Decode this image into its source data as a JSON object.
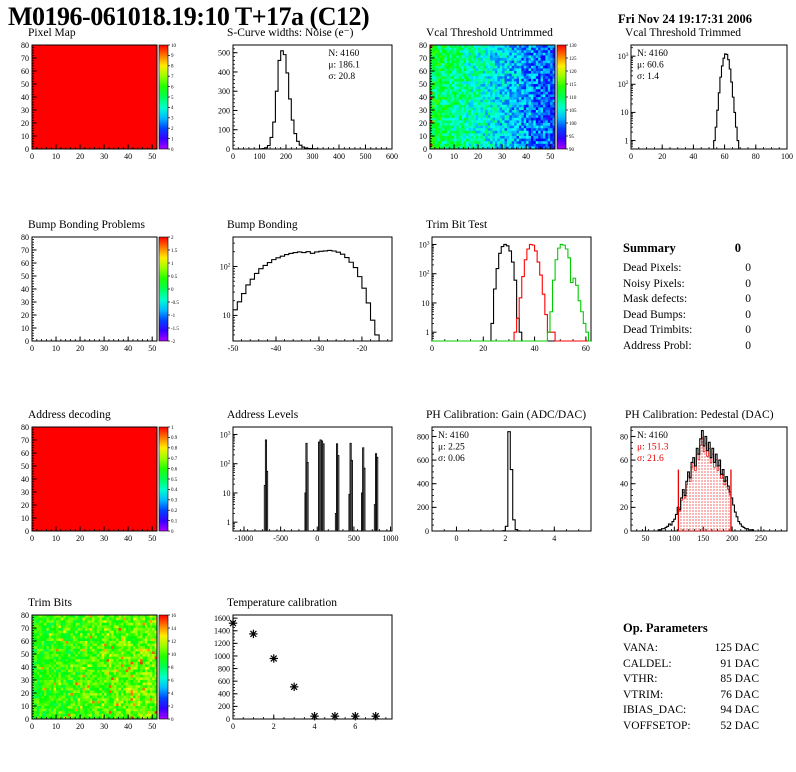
{
  "header": {
    "title": "M0196-061018.19:10 T+17a (C12)",
    "date": "Fri Nov 24 19:17:31 2006"
  },
  "palette": {
    "map_red": "#ff0000",
    "hist_black": "#000000",
    "hist_red": "#ff0000",
    "hist_green": "#00cc00",
    "pedestal_red": "#e60000"
  },
  "summary": {
    "heading": "Summary",
    "heading_value": "0",
    "rows": [
      {
        "label": "Dead Pixels:",
        "value": "0"
      },
      {
        "label": "Noisy Pixels:",
        "value": "0"
      },
      {
        "label": "Mask defects:",
        "value": "0"
      },
      {
        "label": "Dead Bumps:",
        "value": "0"
      },
      {
        "label": "Dead Trimbits:",
        "value": "0"
      },
      {
        "label": "Address Probl:",
        "value": "0"
      }
    ]
  },
  "op_parameters": {
    "heading": "Op. Parameters",
    "rows": [
      {
        "label": "VANA:",
        "value": "125 DAC"
      },
      {
        "label": "CALDEL:",
        "value": "91 DAC"
      },
      {
        "label": "VTHR:",
        "value": "85 DAC"
      },
      {
        "label": "VTRIM:",
        "value": "76 DAC"
      },
      {
        "label": "IBIAS_DAC:",
        "value": "94 DAC"
      },
      {
        "label": "VOFFSETOP:",
        "value": "52 DAC"
      }
    ]
  },
  "chart_data": [
    {
      "title": "Pixel Map",
      "type": "heatmap",
      "render": "map",
      "axes": {
        "xlim": [
          0,
          52
        ],
        "ylim": [
          0,
          80
        ],
        "xticks": [
          0,
          10,
          20,
          30,
          40,
          50
        ],
        "yticks": [
          0,
          10,
          20,
          30,
          40,
          50,
          60,
          70,
          80
        ],
        "xminor": 2,
        "yminor": 2
      },
      "fill": {
        "style": "solid",
        "color": "#ff0000",
        "uniform_value": 10
      },
      "colorbar": {
        "range": [
          0,
          10
        ],
        "ticks": [
          0,
          1,
          2,
          3,
          4,
          5,
          6,
          7,
          8,
          9,
          10
        ]
      }
    },
    {
      "title": "S-Curve widths: Noise (e⁻)",
      "type": "bar",
      "render": "hist",
      "axes": {
        "xlim": [
          0,
          600
        ],
        "ylim": [
          0,
          540
        ],
        "xticks": [
          0,
          100,
          200,
          300,
          400,
          500,
          600
        ],
        "yticks": [
          0,
          100,
          200,
          300,
          400,
          500
        ],
        "xminor": 20,
        "yminor": 20,
        "ylog": false
      },
      "series": [
        {
          "color": "#000000",
          "xstart": 100,
          "binw": 10,
          "counts": [
            1,
            2,
            6,
            18,
            60,
            140,
            300,
            460,
            510,
            490,
            395,
            260,
            150,
            80,
            40,
            20,
            10,
            5,
            3,
            2,
            1,
            1
          ]
        }
      ],
      "stats": {
        "pos": "right",
        "lines": [
          {
            "text": "N: 4160",
            "color": "#000000"
          },
          {
            "text": "μ: 186.1",
            "color": "#000000"
          },
          {
            "text": "σ: 20.8",
            "color": "#000000"
          }
        ]
      }
    },
    {
      "title": "Vcal Threshold Untrimmed",
      "type": "heatmap",
      "render": "map",
      "axes": {
        "xlim": [
          0,
          52
        ],
        "ylim": [
          0,
          80
        ],
        "xticks": [
          0,
          10,
          20,
          30,
          40,
          50
        ],
        "yticks": [
          0,
          10,
          20,
          30,
          40,
          50,
          60,
          70,
          80
        ],
        "xminor": 2,
        "yminor": 2
      },
      "fill": {
        "style": "noise",
        "base": 111,
        "slope": -13,
        "noise": 5,
        "range": [
          90,
          130
        ],
        "seed": 7,
        "edge_hot": true
      },
      "colorbar": {
        "range": [
          90,
          130
        ],
        "ticks": [
          90,
          95,
          100,
          105,
          110,
          115,
          120,
          125,
          130
        ]
      }
    },
    {
      "title": "Vcal Threshold Trimmed",
      "type": "bar",
      "render": "hist",
      "axes": {
        "xlim": [
          0,
          100
        ],
        "ylim": [
          0.5,
          2500
        ],
        "xticks": [
          0,
          20,
          40,
          60,
          80,
          100
        ],
        "xminor": 5,
        "ylog": true
      },
      "series": [
        {
          "color": "#000000",
          "xstart": 53,
          "binw": 1,
          "counts": [
            1,
            3,
            12,
            50,
            180,
            450,
            850,
            1200,
            1150,
            750,
            350,
            120,
            35,
            10,
            3,
            1
          ]
        }
      ],
      "stats": {
        "pos": "left",
        "lines": [
          {
            "text": "N: 4160",
            "color": "#000000"
          },
          {
            "text": "μ: 60.6",
            "color": "#000000"
          },
          {
            "text": "σ:  1.4",
            "color": "#000000"
          }
        ]
      }
    },
    {
      "title": "Bump Bonding Problems",
      "type": "heatmap",
      "render": "map",
      "axes": {
        "xlim": [
          0,
          52
        ],
        "ylim": [
          0,
          80
        ],
        "xticks": [
          0,
          10,
          20,
          30,
          40,
          50
        ],
        "yticks": [
          0,
          10,
          20,
          30,
          40,
          50,
          60,
          70,
          80
        ],
        "xminor": 2,
        "yminor": 2
      },
      "fill": {
        "style": "empty"
      },
      "colorbar": {
        "range": [
          -2,
          2
        ],
        "ticks": [
          -2,
          -1.5,
          -1,
          -0.5,
          0,
          0.5,
          1,
          1.5,
          2
        ]
      }
    },
    {
      "title": "Bump Bonding",
      "type": "bar",
      "render": "hist",
      "axes": {
        "xlim": [
          -50,
          -13
        ],
        "ylim": [
          3,
          400
        ],
        "xticks": [
          -50,
          -40,
          -30,
          -20
        ],
        "xminor": 2,
        "ylog": true
      },
      "series": [
        {
          "color": "#000000",
          "xstart": -50,
          "binw": 1,
          "counts": [
            13,
            19,
            28,
            42,
            55,
            72,
            90,
            105,
            120,
            138,
            150,
            162,
            175,
            185,
            192,
            198,
            192,
            200,
            186,
            198,
            204,
            208,
            213,
            207,
            196,
            178,
            152,
            122,
            95,
            62,
            36,
            18,
            8,
            4
          ]
        }
      ]
    },
    {
      "title": "Trim Bit Test",
      "type": "bar",
      "render": "hist",
      "axes": {
        "xlim": [
          0,
          62
        ],
        "ylim": [
          0.5,
          1800
        ],
        "xticks": [
          0,
          20,
          40,
          60
        ],
        "xminor": 5,
        "ylog": true
      },
      "series": [
        {
          "name": "trim-bit-14",
          "color": "#000000",
          "xstart": 23,
          "binw": 1,
          "counts": [
            2,
            30,
            150,
            500,
            850,
            1000,
            900,
            600,
            250,
            60,
            3,
            1
          ]
        },
        {
          "name": "trim-bit-13",
          "color": "#ff0000",
          "xstart": 32,
          "binw": 1,
          "counts": [
            1,
            3,
            15,
            80,
            300,
            700,
            1000,
            950,
            600,
            250,
            90,
            20,
            4,
            1,
            1,
            1
          ]
        },
        {
          "name": "trim-bit-11",
          "color": "#00cc00",
          "xstart": 45,
          "binw": 1,
          "counts": [
            1,
            5,
            60,
            300,
            750,
            1000,
            950,
            700,
            350,
            50,
            70,
            40,
            12,
            5,
            2,
            1
          ]
        }
      ]
    },
    {
      "title": "Address decoding",
      "type": "heatmap",
      "render": "map",
      "axes": {
        "xlim": [
          0,
          52
        ],
        "ylim": [
          0,
          80
        ],
        "xticks": [
          0,
          10,
          20,
          30,
          40,
          50
        ],
        "yticks": [
          0,
          10,
          20,
          30,
          40,
          50,
          60,
          70,
          80
        ],
        "xminor": 2,
        "yminor": 2
      },
      "fill": {
        "style": "solid",
        "color": "#ff0000",
        "uniform_value": 1
      },
      "colorbar": {
        "range": [
          0,
          1
        ],
        "ticks": [
          0,
          0.1,
          0.2,
          0.3,
          0.4,
          0.5,
          0.6,
          0.7,
          0.8,
          0.9,
          1
        ]
      }
    },
    {
      "title": "Address Levels",
      "type": "bar",
      "render": "bars",
      "axes": {
        "xlim": [
          -1150,
          1020
        ],
        "ylim": [
          0.5,
          1800
        ],
        "xticks": [
          -1000,
          -500,
          0,
          500,
          1000
        ],
        "xminor": 100,
        "ylog": true
      },
      "barhw": 8,
      "bars": [
        [
          -715,
          18
        ],
        [
          -700,
          650
        ],
        [
          -685,
          55
        ],
        [
          -160,
          10
        ],
        [
          -147,
          500
        ],
        [
          -133,
          110
        ],
        [
          25,
          550
        ],
        [
          45,
          650
        ],
        [
          65,
          600
        ],
        [
          85,
          480
        ],
        [
          255,
          2
        ],
        [
          270,
          480
        ],
        [
          287,
          190
        ],
        [
          440,
          9
        ],
        [
          455,
          500
        ],
        [
          472,
          130
        ],
        [
          612,
          10
        ],
        [
          627,
          350
        ],
        [
          643,
          70
        ],
        [
          787,
          4
        ],
        [
          802,
          220
        ],
        [
          818,
          165
        ]
      ]
    },
    {
      "title": "PH Calibration: Gain (ADC/DAC)",
      "type": "bar",
      "render": "hist",
      "axes": {
        "xlim": [
          -1,
          5.5
        ],
        "ylim": [
          0,
          880
        ],
        "xticks": [
          0,
          2,
          4
        ],
        "yticks": [
          0,
          200,
          400,
          600,
          800
        ],
        "xminor": 0.5,
        "yminor": 50,
        "ylog": false
      },
      "series": [
        {
          "color": "#000000",
          "xstart": 1.9,
          "binw": 0.1,
          "counts": [
            3,
            40,
            840,
            520,
            95,
            12,
            2
          ]
        }
      ],
      "stats": {
        "pos": "left",
        "lines": [
          {
            "text": "N: 4160",
            "color": "#000000"
          },
          {
            "text": "μ: 2.25",
            "color": "#000000"
          },
          {
            "text": "σ: 0.06",
            "color": "#000000"
          }
        ]
      }
    },
    {
      "title": "PH Calibration: Pedestal (DAC)",
      "type": "bar",
      "render": "hist",
      "axes": {
        "xlim": [
          25,
          295
        ],
        "ylim": [
          0,
          88
        ],
        "xticks": [
          50,
          100,
          150,
          200,
          250
        ],
        "yticks": [
          0,
          20,
          40,
          60,
          80
        ],
        "xminor": 10,
        "yminor": 5,
        "ylog": false
      },
      "series": [
        {
          "color": "#000000",
          "xstart": 72,
          "binw": 3,
          "counts": [
            1,
            1,
            2,
            2,
            3,
            4,
            6,
            5,
            8,
            10,
            14,
            20,
            18,
            28,
            35,
            30,
            42,
            50,
            45,
            58,
            62,
            55,
            70,
            65,
            78,
            85,
            72,
            80,
            68,
            75,
            62,
            70,
            58,
            65,
            55,
            60,
            48,
            52,
            42,
            46,
            38,
            33,
            28,
            22,
            16,
            12,
            8,
            6,
            4,
            3,
            2,
            2,
            1,
            1,
            1
          ]
        }
      ],
      "hatch": {
        "from": 107,
        "to": 198,
        "scale": 0.93,
        "color": "#e60000"
      },
      "vlines": [
        {
          "x": 107,
          "h": 52,
          "color": "#e60000"
        },
        {
          "x": 198,
          "h": 52,
          "color": "#e60000"
        }
      ],
      "stats": {
        "pos": "left",
        "lines": [
          {
            "text": "N: 4160",
            "color": "#000000"
          },
          {
            "text": "μ: 151.3",
            "color": "#e60000"
          },
          {
            "text": "σ: 21.6",
            "color": "#e60000"
          }
        ]
      }
    },
    {
      "title": "Trim Bits",
      "type": "heatmap",
      "render": "map",
      "axes": {
        "xlim": [
          0,
          52
        ],
        "ylim": [
          0,
          80
        ],
        "xticks": [
          0,
          10,
          20,
          30,
          40,
          50
        ],
        "yticks": [
          0,
          10,
          20,
          30,
          40,
          50,
          60,
          70,
          80
        ],
        "xminor": 2,
        "yminor": 2
      },
      "fill": {
        "style": "noise",
        "base": 9.4,
        "slope": 1.2,
        "noise": 1.6,
        "range": [
          0,
          16
        ],
        "seed": 13,
        "hot": {
          "prob": 0.01,
          "slope": 0.06,
          "add": 3.5
        }
      },
      "colorbar": {
        "range": [
          0,
          16
        ],
        "ticks": [
          0,
          2,
          4,
          6,
          8,
          10,
          12,
          14,
          16
        ]
      }
    },
    {
      "title": "Temperature calibration",
      "type": "scatter",
      "render": "scatter",
      "axes": {
        "xlim": [
          0,
          7.8
        ],
        "ylim": [
          0,
          1650
        ],
        "xticks": [
          0,
          2,
          4,
          6
        ],
        "yticks": [
          0,
          200,
          400,
          600,
          800,
          1000,
          1200,
          1400,
          1600
        ],
        "xminor": 0.5,
        "yminor": 50,
        "ylog": false
      },
      "points": [
        [
          0,
          1520
        ],
        [
          1,
          1350
        ],
        [
          2,
          960
        ],
        [
          3,
          510
        ],
        [
          4,
          45
        ],
        [
          5,
          45
        ],
        [
          6,
          45
        ],
        [
          7,
          45
        ]
      ],
      "marker": "asterisk"
    }
  ]
}
